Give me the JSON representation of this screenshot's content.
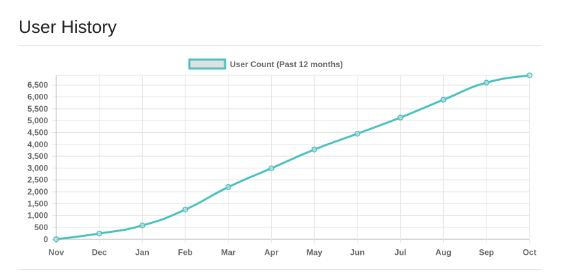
{
  "header": {
    "title": "User History"
  },
  "chart_data": {
    "type": "line",
    "categories": [
      "Nov",
      "Dec",
      "Jan",
      "Feb",
      "Mar",
      "Apr",
      "May",
      "Jun",
      "Jul",
      "Aug",
      "Sep",
      "Oct"
    ],
    "series": [
      {
        "name": "User Count (Past 12 months)",
        "values": [
          0,
          240,
          580,
          1250,
          2200,
          2990,
          3780,
          4450,
          5130,
          5880,
          6600,
          6910
        ]
      }
    ],
    "yticks": [
      "0",
      "500",
      "1,000",
      "1,500",
      "2,000",
      "2,500",
      "3,000",
      "3,500",
      "4,000",
      "4,500",
      "5,000",
      "5,500",
      "6,000",
      "6,500"
    ],
    "ylim": [
      0,
      6910
    ],
    "grid": true,
    "legend": "top",
    "color": "#4bc0c0",
    "legend_fill": "#e0e0e0"
  }
}
